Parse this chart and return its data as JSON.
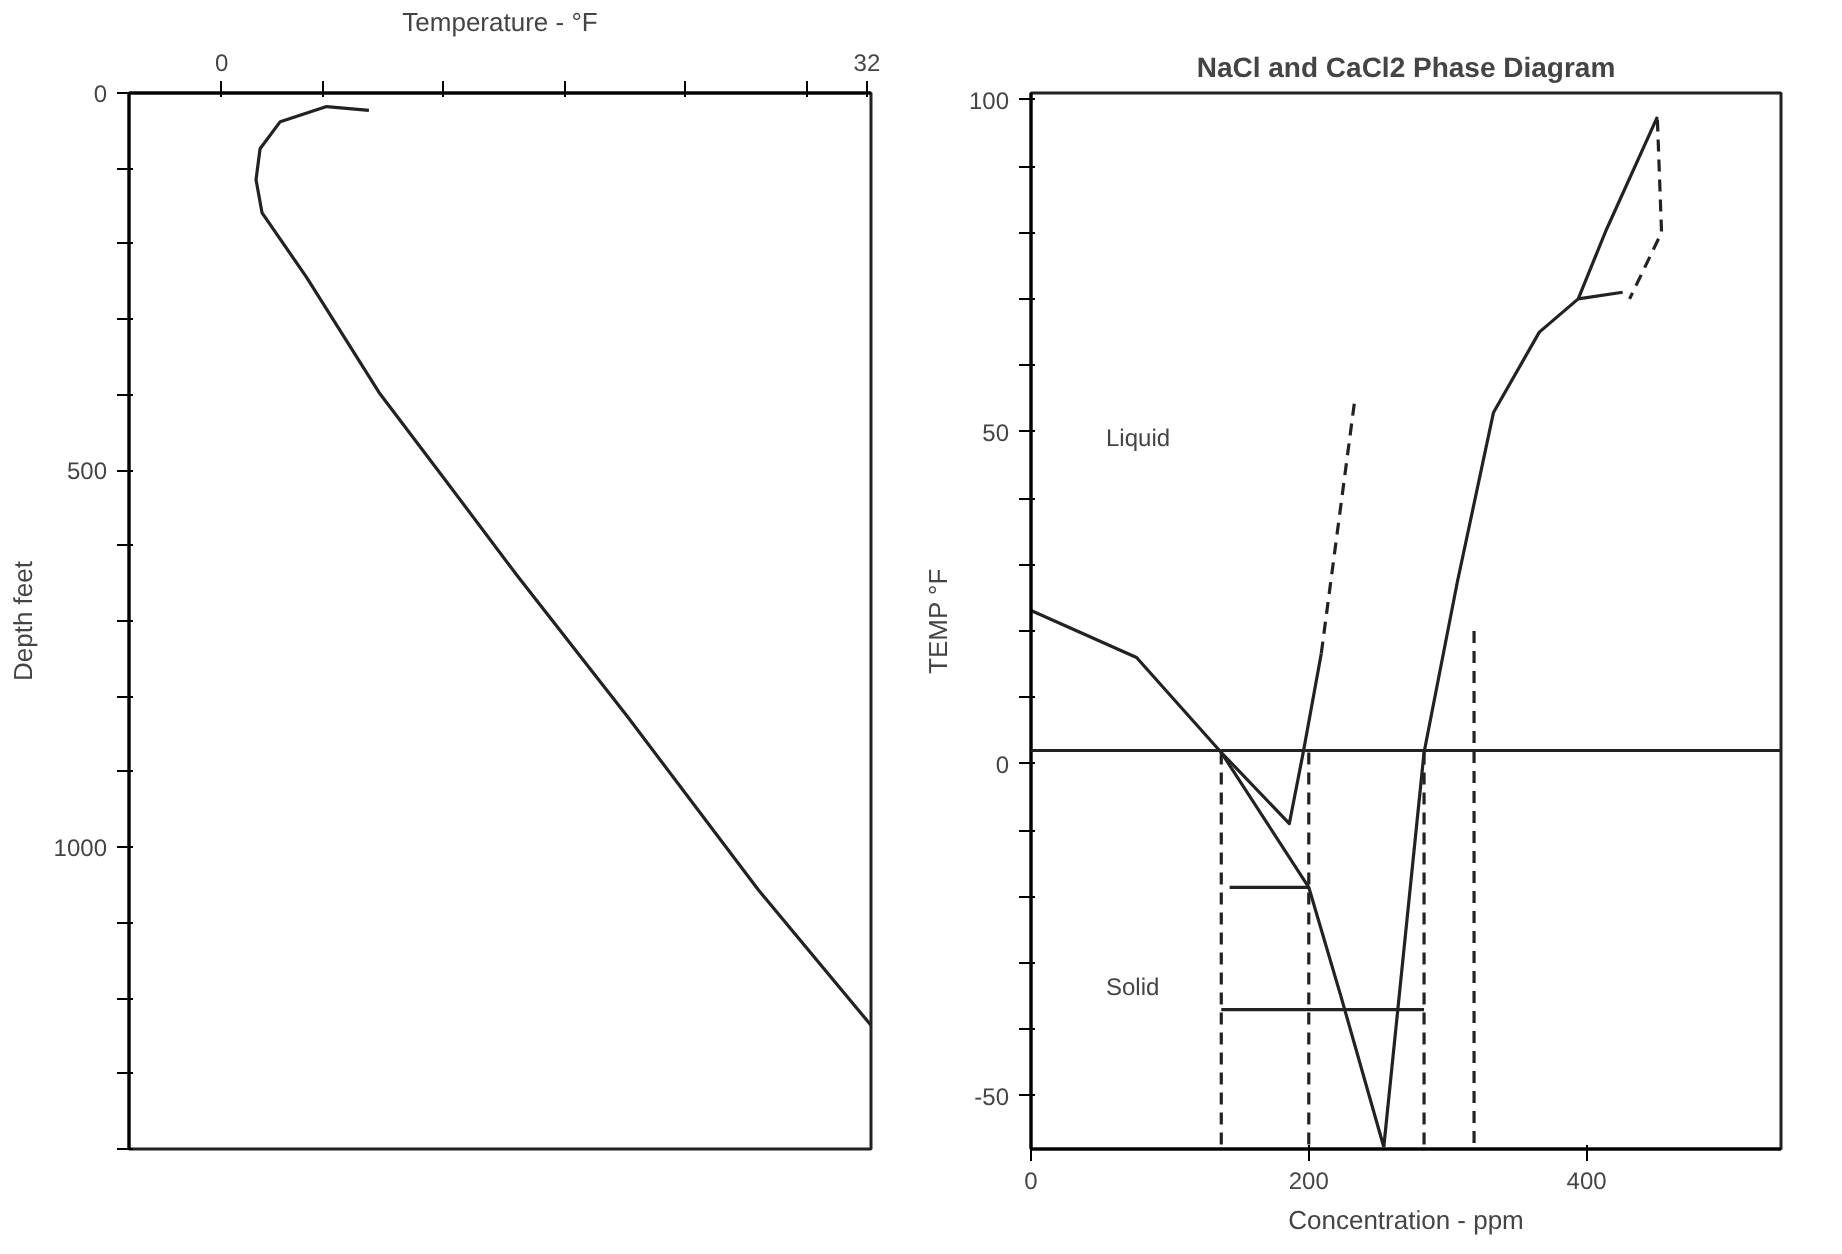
{
  "chart_data": [
    {
      "type": "line",
      "xlabel": "Temperature - °F",
      "ylabel": "Depth feet",
      "grid": false,
      "xlim": [
        -4.6,
        32.2
      ],
      "xticks": [
        {
          "value": 0,
          "label": "0"
        },
        {
          "value": 5,
          "label": null
        },
        {
          "value": 11,
          "label": null
        },
        {
          "value": 17,
          "label": null
        },
        {
          "value": 23,
          "label": null
        },
        {
          "value": 29,
          "label": null
        },
        {
          "value": 32,
          "label": "32"
        }
      ],
      "ylim": [
        1400,
        0
      ],
      "yticks": [
        {
          "value": 0,
          "label": "0"
        },
        {
          "value": 100,
          "label": null
        },
        {
          "value": 200,
          "label": null
        },
        {
          "value": 300,
          "label": null
        },
        {
          "value": 400,
          "label": null
        },
        {
          "value": 500,
          "label": "500"
        },
        {
          "value": 600,
          "label": null
        },
        {
          "value": 700,
          "label": null
        },
        {
          "value": 800,
          "label": null
        },
        {
          "value": 900,
          "label": null
        },
        {
          "value": 1000,
          "label": "1000"
        },
        {
          "value": 1100,
          "label": null
        },
        {
          "value": 1200,
          "label": null
        },
        {
          "value": 1300,
          "label": null
        },
        {
          "value": 1400,
          "label": null
        }
      ],
      "series": [
        {
          "color": "#222222",
          "line_style": "solid",
          "x": [
            7.3,
            5.2,
            2.9,
            1.9,
            1.7,
            2.0,
            4.2,
            7.8,
            11.0,
            14.6,
            20.1,
            26.6,
            32.2
          ],
          "values": [
            23,
            18,
            38,
            74,
            115,
            159,
            244,
            397,
            510,
            638,
            826,
            1056,
            1236
          ]
        }
      ]
    },
    {
      "type": "line",
      "title": "NaCl and CaCl2 Phase Diagram",
      "xlabel": "Concentration - ppm",
      "ylabel": "TEMP °F",
      "grid": false,
      "xlim": [
        0,
        540
      ],
      "xticks": [
        0,
        200,
        400
      ],
      "ylim": [
        -58,
        101
      ],
      "yticks": [
        {
          "value": 100,
          "label": "100"
        },
        {
          "value": 90,
          "label": null
        },
        {
          "value": 80,
          "label": null
        },
        {
          "value": 70,
          "label": null
        },
        {
          "value": 60,
          "label": null
        },
        {
          "value": 50,
          "label": "50"
        },
        {
          "value": 40,
          "label": null
        },
        {
          "value": 30,
          "label": null
        },
        {
          "value": 20,
          "label": null
        },
        {
          "value": 10,
          "label": null
        },
        {
          "value": 0,
          "label": "0"
        },
        {
          "value": -10,
          "label": null
        },
        {
          "value": -20,
          "label": null
        },
        {
          "value": -30,
          "label": null
        },
        {
          "value": -40,
          "label": null
        },
        {
          "value": -50,
          "label": "-50"
        }
      ],
      "ref_lines": [
        {
          "axis": "y",
          "value": 2,
          "color": "#222222"
        }
      ],
      "annotations": [
        "Liquid",
        "Solid"
      ],
      "series": [
        {
          "color": "#222222",
          "line_style": "solid",
          "x": [
            0,
            76,
            137,
            200,
            223,
            254
          ],
          "values": [
            23.1,
            16,
            1.7,
            -18.6,
            -34.9,
            -57.7
          ]
        },
        {
          "color": "#222222",
          "line_style": "solid",
          "x": [
            254,
            283,
            307,
            333,
            366,
            394,
            414,
            451
          ],
          "values": [
            -57.7,
            1.7,
            27.4,
            52.9,
            65,
            70,
            80.3,
            97.4
          ]
        },
        {
          "color": "#222222",
          "line_style": "solid",
          "x": [
            137,
            186,
            196,
            209
          ],
          "values": [
            1.7,
            -9,
            1.7,
            16.6
          ]
        },
        {
          "color": "#222222",
          "line_style": "dashed",
          "x": [
            209,
            233
          ],
          "values": [
            16.6,
            54.6
          ]
        },
        {
          "color": "#222222",
          "line_style": "dashed",
          "x": [
            137,
            137
          ],
          "values": [
            1.7,
            -58
          ]
        },
        {
          "color": "#222222",
          "line_style": "dashed",
          "x": [
            200,
            200
          ],
          "values": [
            1.7,
            -58
          ]
        },
        {
          "color": "#222222",
          "line_style": "dashed",
          "x": [
            283,
            283
          ],
          "values": [
            1.7,
            -58
          ]
        },
        {
          "color": "#222222",
          "line_style": "dashed",
          "x": [
            319,
            319
          ],
          "values": [
            20,
            -58
          ]
        },
        {
          "color": "#222222",
          "line_style": "solid",
          "x": [
            143,
            200
          ],
          "values": [
            -18.6,
            -18.6
          ]
        },
        {
          "color": "#222222",
          "line_style": "solid",
          "x": [
            137,
            283
          ],
          "values": [
            -37,
            -37
          ]
        },
        {
          "color": "#222222",
          "line_style": "dashed",
          "x": [
            451,
            454,
            431
          ],
          "values": [
            97,
            80,
            70
          ]
        },
        {
          "color": "#222222",
          "line_style": "solid",
          "x": [
            394,
            426
          ],
          "values": [
            70,
            71
          ]
        }
      ]
    }
  ]
}
